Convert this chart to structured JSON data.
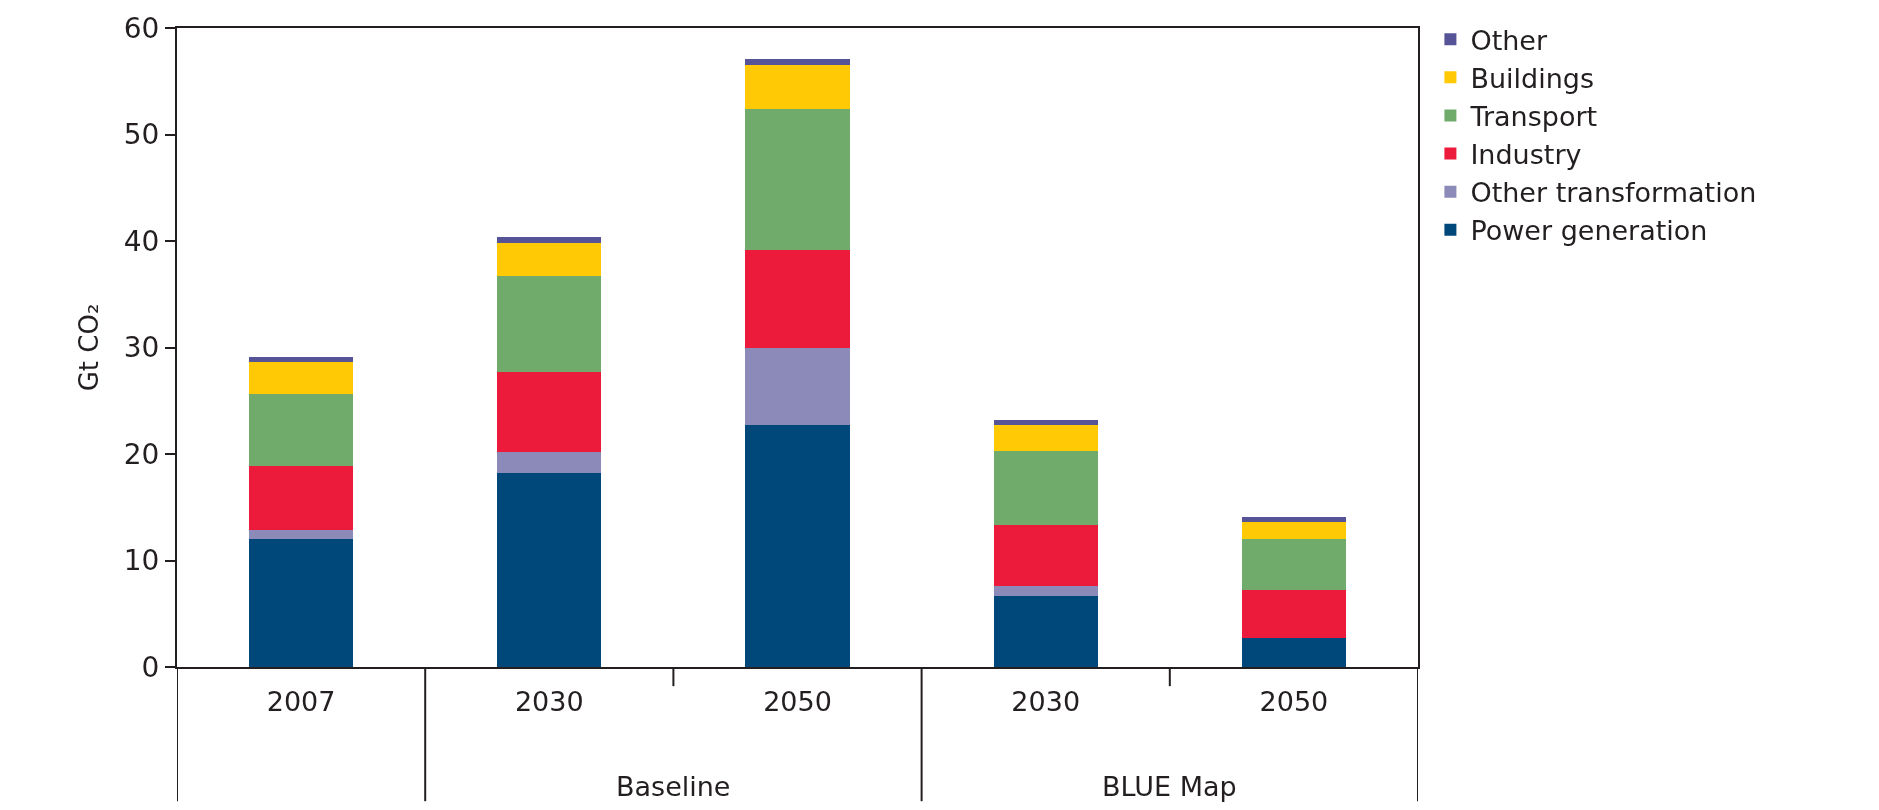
{
  "chart_data": {
    "type": "bar",
    "stacked": true,
    "ylabel": "Gt CO₂",
    "categories": [
      "2007",
      "2030",
      "2050",
      "2030",
      "2050"
    ],
    "annotations": [
      "Baseline",
      "BLUE Map"
    ],
    "series": [
      {
        "name": "Power generation",
        "color": "#00477a",
        "values": [
          12.0,
          18.2,
          22.7,
          6.7,
          2.7
        ]
      },
      {
        "name": "Other transformation",
        "color": "#8c8ab8",
        "values": [
          0.9,
          2.0,
          7.3,
          0.9,
          null
        ]
      },
      {
        "name": "Industry",
        "color": "#ec1a3b",
        "values": [
          6.0,
          7.5,
          9.2,
          5.7,
          4.5
        ]
      },
      {
        "name": "Transport",
        "color": "#71ab6c",
        "values": [
          6.7,
          9.0,
          13.2,
          7.0,
          4.8
        ]
      },
      {
        "name": "Buildings",
        "color": "#ffc905",
        "values": [
          3.0,
          3.1,
          4.1,
          2.4,
          1.6
        ]
      },
      {
        "name": "Other",
        "color": "#575397",
        "values": [
          0.5,
          0.6,
          0.6,
          0.5,
          0.5
        ]
      }
    ],
    "ylim": [
      0,
      60
    ],
    "yticks": [
      0,
      10,
      20,
      30,
      40,
      50,
      60
    ],
    "legend": "top right"
  }
}
